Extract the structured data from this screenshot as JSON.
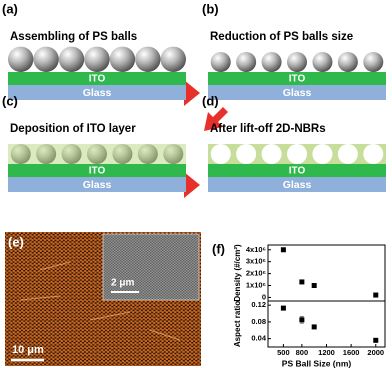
{
  "panels": [
    {
      "label": "(a)",
      "title": "Assembling of PS balls",
      "ito": "ITO",
      "glass": "Glass"
    },
    {
      "label": "(b)",
      "title": "Reduction of PS balls size",
      "ito": "ITO",
      "glass": "Glass"
    },
    {
      "label": "(c)",
      "title": "Deposition of ITO layer",
      "ito": "ITO",
      "glass": "Glass"
    },
    {
      "label": "(d)",
      "title": "After lift-off 2D-NBRs",
      "ito": "ITO",
      "glass": "Glass"
    }
  ],
  "image_panel": {
    "label": "(e)",
    "scale_bar": "10 μm",
    "inset_scale_bar": "2 μm"
  },
  "chart_panel": {
    "label": "(f)"
  },
  "chart_data": [
    {
      "type": "scatter",
      "ylabel": "Density (#/cm²)",
      "x": [
        500,
        800,
        1000,
        2000
      ],
      "values": [
        4000000,
        1300000,
        1000000,
        200000
      ],
      "color": "#000000",
      "xlim": [
        250,
        2150
      ],
      "ylim": [
        -300000,
        4400000
      ],
      "yticks": [
        {
          "value": 4000000,
          "label": "4x10⁶"
        },
        {
          "value": 3000000,
          "label": "3x10⁶"
        },
        {
          "value": 2000000,
          "label": "2x10⁶"
        },
        {
          "value": 1000000,
          "label": "1x10⁶"
        },
        0
      ]
    },
    {
      "type": "scatter",
      "ylabel": "Aspect ratio",
      "xlabel": "PS Ball Size (nm)",
      "x": [
        500,
        800,
        1000,
        2000
      ],
      "values": [
        0.113,
        0.085,
        0.068,
        0.036
      ],
      "errors": [
        null,
        0.008,
        null,
        null
      ],
      "color": "#000000",
      "xlim": [
        250,
        2150
      ],
      "ylim": [
        0.02,
        0.13
      ],
      "yticks": [
        0.12,
        0.08,
        0.04
      ],
      "xticks": [
        500,
        800,
        1200,
        1600,
        2000
      ]
    }
  ]
}
